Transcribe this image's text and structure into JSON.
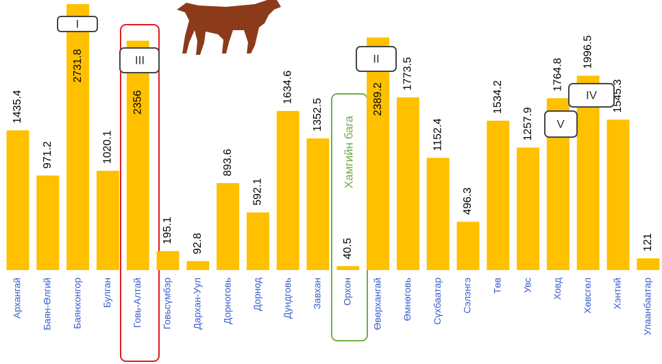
{
  "chart_data": {
    "type": "bar",
    "categories": [
      "Архангай",
      "Баян-Өлгий",
      "Баянхонгор",
      "Булган",
      "Говь-Алтай",
      "Говьсүмбэр",
      "Дархан-Уул",
      "Дорноговь",
      "Дорнод",
      "Дундговь",
      "Завхан",
      "Орхон",
      "Өвөрхангай",
      "Өмнөговь",
      "Сүхбаатар",
      "Сэлэнгэ",
      "Төв",
      "Увс",
      "Ховд",
      "Хөвсгөл",
      "Хэнтий",
      "Улаанбаатар"
    ],
    "values": [
      1435.4,
      971.2,
      2731.8,
      1020.1,
      2356,
      195.1,
      92.8,
      893.6,
      592.1,
      1634.6,
      1352.5,
      40.5,
      2389.2,
      1773.5,
      1152.4,
      496.3,
      1534.2,
      1257.9,
      1764.8,
      1996.5,
      1545.3,
      121
    ],
    "color": "#ffc000",
    "annotations": [
      "I",
      "III",
      "II",
      "IV",
      "V",
      "Хамгийн бага"
    ]
  }
}
